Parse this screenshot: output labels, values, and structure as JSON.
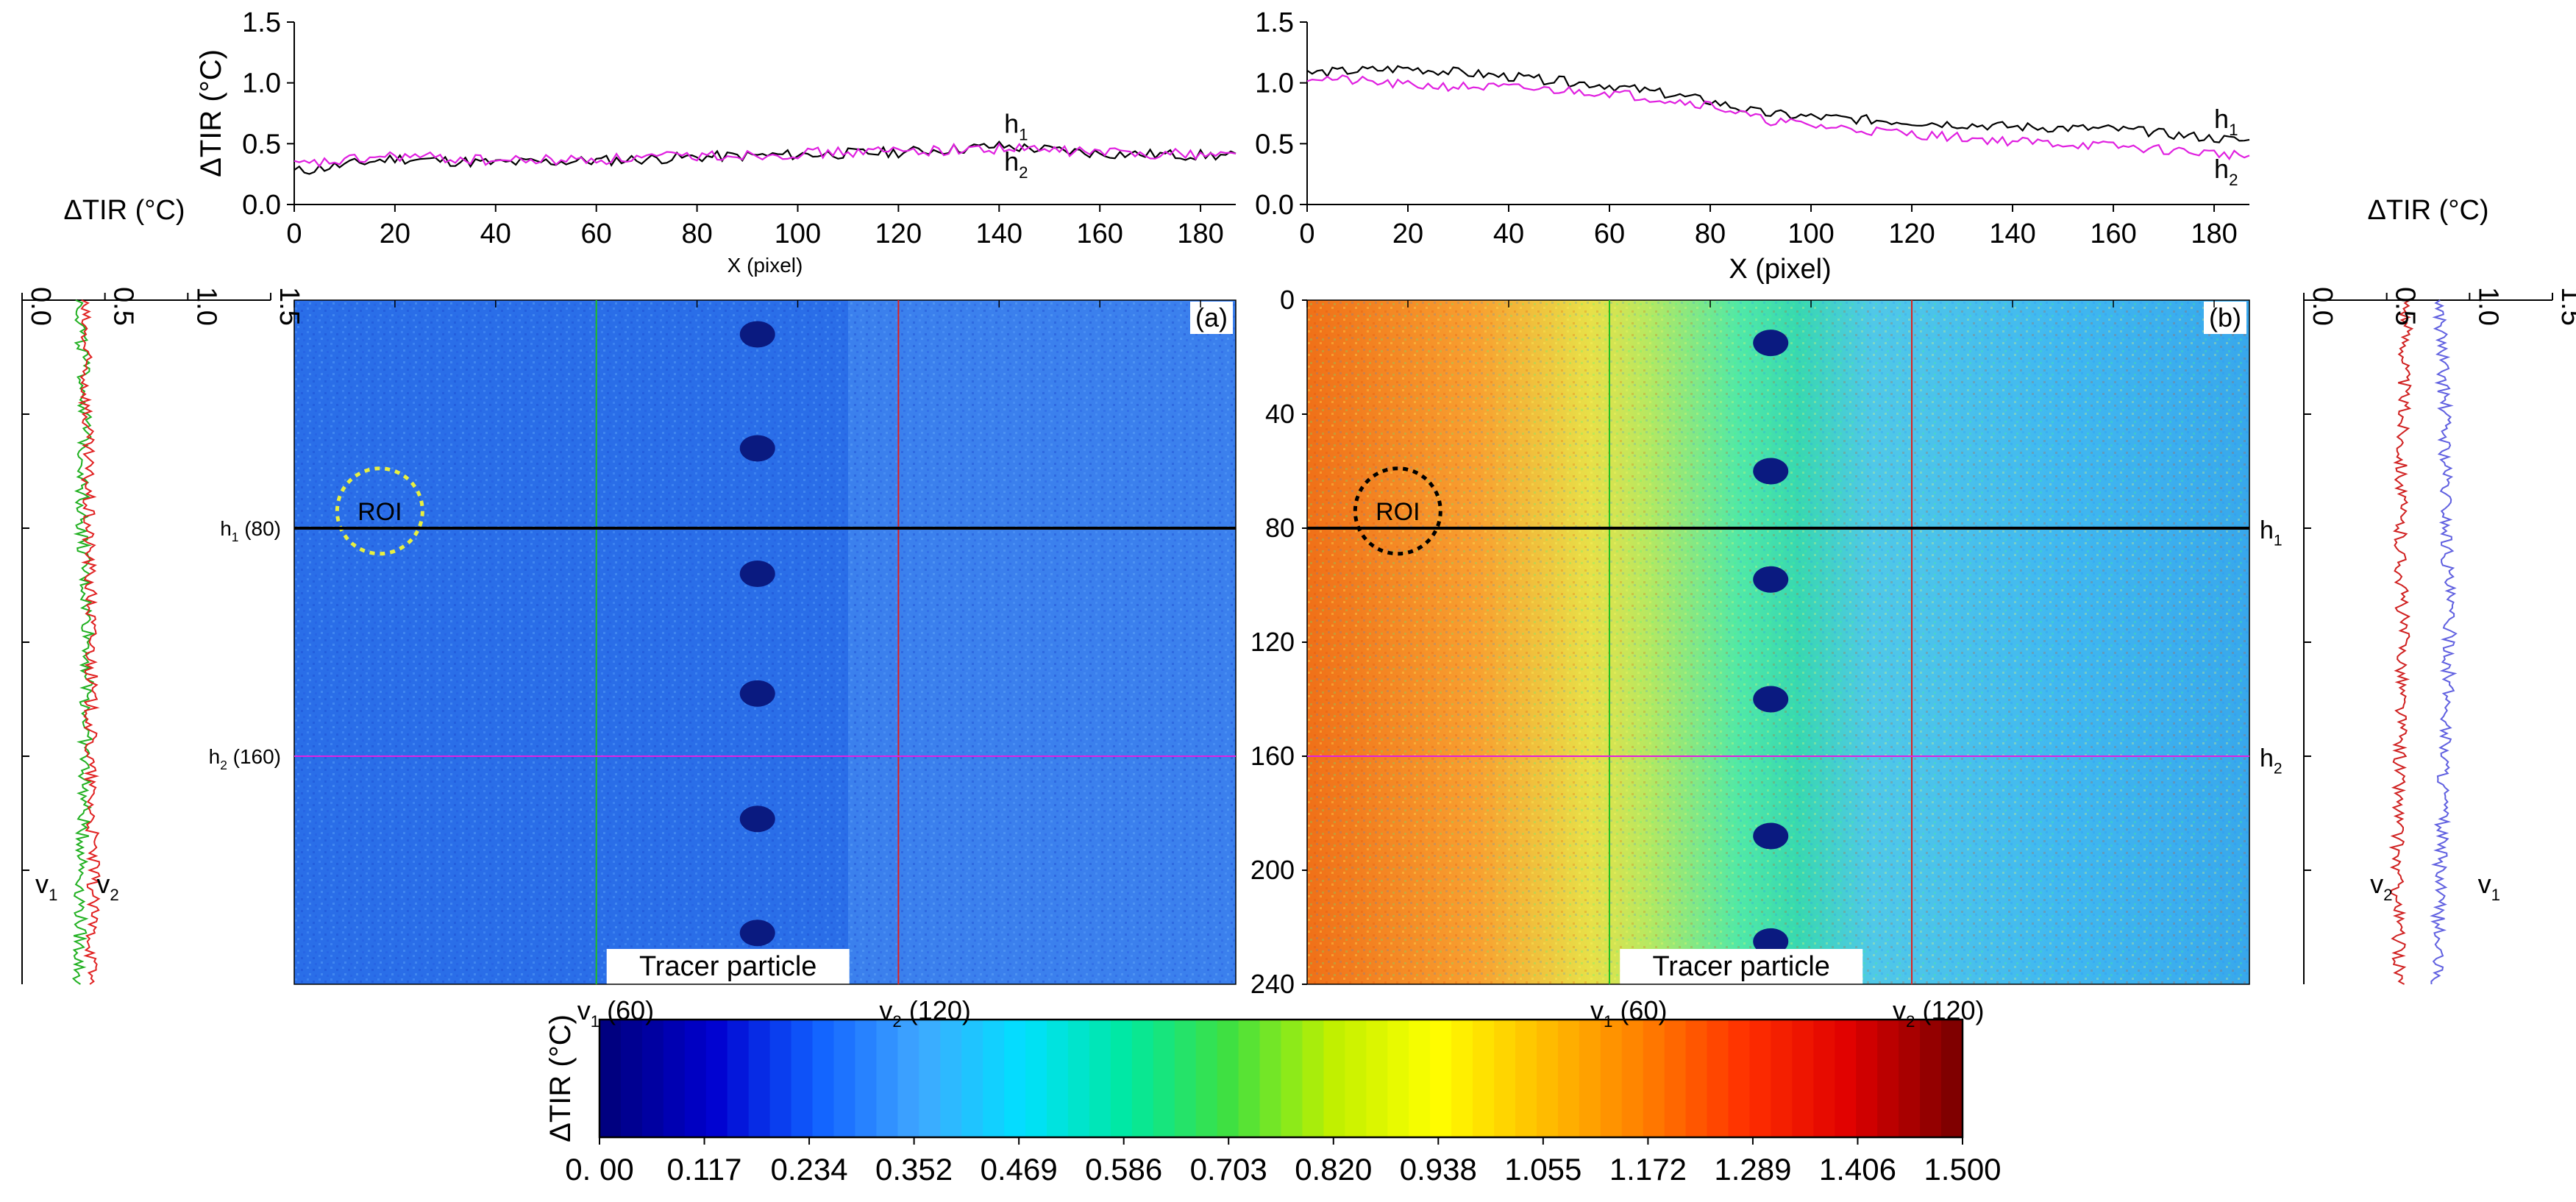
{
  "chart_data": [
    {
      "type": "line",
      "panel": "a-top",
      "ylabel": "ΔTIR (°C)",
      "xlabel": "X (pixel)",
      "xlim": [
        0,
        187
      ],
      "ylim": [
        0,
        1.5
      ],
      "xticks": [
        0,
        20,
        40,
        60,
        80,
        100,
        120,
        140,
        160,
        180
      ],
      "yticks": [
        "0.0",
        "0.5",
        "1.0",
        "1.5"
      ],
      "series": [
        {
          "name": "h1",
          "label": "h",
          "sub": "1",
          "color": "#000000",
          "x": [
            0,
            20,
            40,
            60,
            80,
            100,
            120,
            140,
            160,
            187
          ],
          "y": [
            0.27,
            0.38,
            0.34,
            0.36,
            0.39,
            0.41,
            0.43,
            0.48,
            0.42,
            0.4
          ]
        },
        {
          "name": "h2",
          "label": "h",
          "sub": "2",
          "color": "#e020e0",
          "x": [
            0,
            20,
            40,
            60,
            80,
            100,
            120,
            140,
            160,
            187
          ],
          "y": [
            0.32,
            0.4,
            0.36,
            0.37,
            0.4,
            0.42,
            0.44,
            0.46,
            0.43,
            0.41
          ]
        }
      ]
    },
    {
      "type": "line",
      "panel": "b-top",
      "xlabel": "X (pixel)",
      "xlim": [
        0,
        187
      ],
      "ylim": [
        0,
        1.5
      ],
      "xticks": [
        0,
        20,
        40,
        60,
        80,
        100,
        120,
        140,
        160,
        180
      ],
      "yticks": [
        "0.0",
        "0.5",
        "1.0",
        "1.5"
      ],
      "series": [
        {
          "name": "h1",
          "label": "h",
          "sub": "1",
          "color": "#000000",
          "x": [
            0,
            20,
            40,
            60,
            80,
            90,
            100,
            120,
            140,
            160,
            187
          ],
          "y": [
            1.08,
            1.12,
            1.05,
            0.98,
            0.85,
            0.75,
            0.72,
            0.68,
            0.64,
            0.62,
            0.52
          ]
        },
        {
          "name": "h2",
          "label": "h",
          "sub": "2",
          "color": "#e020e0",
          "x": [
            0,
            20,
            40,
            60,
            80,
            90,
            100,
            120,
            140,
            160,
            187
          ],
          "y": [
            1.05,
            0.98,
            0.96,
            0.92,
            0.82,
            0.7,
            0.65,
            0.58,
            0.52,
            0.48,
            0.4
          ]
        }
      ]
    },
    {
      "type": "line",
      "panel": "a-left",
      "orientation": "vertical",
      "xlabel": "ΔTIR (°C)",
      "xlim": [
        0,
        1.5
      ],
      "ylim": [
        0,
        240
      ],
      "xticks": [
        "0.0",
        "0.5",
        "1.0",
        "1.5"
      ],
      "series": [
        {
          "name": "v1",
          "label": "v",
          "sub": "1",
          "color": "#20b020",
          "y": [
            0,
            40,
            80,
            120,
            160,
            200,
            240
          ],
          "x": [
            0.35,
            0.38,
            0.36,
            0.4,
            0.38,
            0.36,
            0.34
          ]
        },
        {
          "name": "v2",
          "label": "v",
          "sub": "2",
          "color": "#e02020",
          "y": [
            0,
            40,
            80,
            120,
            160,
            200,
            240
          ],
          "x": [
            0.37,
            0.39,
            0.4,
            0.42,
            0.41,
            0.43,
            0.42
          ]
        }
      ]
    },
    {
      "type": "line",
      "panel": "b-right",
      "orientation": "vertical",
      "xlabel": "ΔTIR (°C)",
      "xlim": [
        0,
        1.5
      ],
      "ylim": [
        0,
        240
      ],
      "xticks": [
        "0.0",
        "0.5",
        "1.0",
        "1.5"
      ],
      "series": [
        {
          "name": "v1",
          "label": "v",
          "sub": "1",
          "color": "#6060e0",
          "y": [
            0,
            40,
            80,
            120,
            160,
            200,
            240
          ],
          "x": [
            0.82,
            0.85,
            0.86,
            0.88,
            0.85,
            0.82,
            0.8
          ]
        },
        {
          "name": "v2",
          "label": "v",
          "sub": "2",
          "color": "#d02020",
          "y": [
            0,
            40,
            80,
            120,
            160,
            200,
            240
          ],
          "x": [
            0.62,
            0.6,
            0.58,
            0.6,
            0.58,
            0.56,
            0.58
          ]
        }
      ]
    },
    {
      "type": "heatmap",
      "panel": "a",
      "panel_label": "(a)",
      "xlim": [
        0,
        187
      ],
      "ylim": [
        0,
        240
      ],
      "mean_value": 0.42,
      "roi_label": "ROI",
      "roi_color": "#e8f040",
      "tracer_label": "Tracer particle",
      "tracer_y": [
        12,
        52,
        96,
        138,
        182,
        222
      ],
      "tracer_x": 92,
      "hlines": [
        {
          "label": "h",
          "sub": "1",
          "value_text": " (80)",
          "y": 80,
          "color": "#000000"
        },
        {
          "label": "h",
          "sub": "2",
          "value_text": " (160)",
          "y": 160,
          "color": "#e020e0"
        }
      ],
      "vlines": [
        {
          "label": "v",
          "sub": "1",
          "value_text": " (60)",
          "x": 60,
          "color": "#20c020"
        },
        {
          "label": "v",
          "sub": "2",
          "value_text": " (120)",
          "x": 120,
          "color": "#e02020"
        }
      ]
    },
    {
      "type": "heatmap",
      "panel": "b",
      "panel_label": "(b)",
      "xlim": [
        0,
        187
      ],
      "ylim": [
        0,
        240
      ],
      "ylabel_ticks": [
        "0",
        "40",
        "80",
        "120",
        "160",
        "200",
        "240"
      ],
      "roi_label": "ROI",
      "roi_color": "#000000",
      "tracer_label": "Tracer particle",
      "tracer_y": [
        15,
        60,
        98,
        140,
        188,
        225
      ],
      "tracer_x": 92,
      "hlines": [
        {
          "label": "h",
          "sub": "1",
          "value_text": "",
          "y": 80,
          "color": "#000000"
        },
        {
          "label": "h",
          "sub": "2",
          "value_text": "",
          "y": 160,
          "color": "#e020e0"
        }
      ],
      "vlines": [
        {
          "label": "v",
          "sub": "1",
          "value_text": " (60)",
          "x": 60,
          "color": "#20c020"
        },
        {
          "label": "v",
          "sub": "2",
          "value_text": " (120)",
          "x": 120,
          "color": "#e02020"
        }
      ]
    },
    {
      "type": "colorbar",
      "label": "ΔTIR (°C)",
      "min": 0,
      "max": 1.5,
      "tick_labels": [
        "0. 00",
        "0.117",
        "0.234",
        "0.352",
        "0.469",
        "0.586",
        "0.703",
        "0.820",
        "0.938",
        "1.055",
        "1.172",
        "1.289",
        "1.406",
        "1.500"
      ],
      "colors": [
        "#000080",
        "#0000d0",
        "#1060ff",
        "#40a8ff",
        "#00e0ff",
        "#00e8a0",
        "#40e040",
        "#c0f000",
        "#ffff00",
        "#ffc000",
        "#ff8000",
        "#ff3000",
        "#e00000",
        "#800000"
      ]
    }
  ]
}
